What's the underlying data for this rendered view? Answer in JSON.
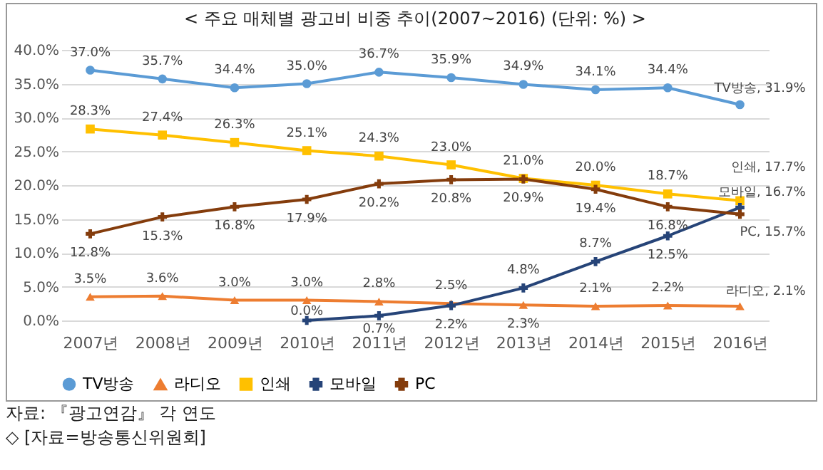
{
  "chart_data": {
    "type": "line",
    "title": "< 주요 매체별 광고비 비중 추이(2007~2016) (단위: %) >",
    "categories": [
      "2007년",
      "2008년",
      "2009년",
      "2010년",
      "2011년",
      "2012년",
      "2013년",
      "2014년",
      "2015년",
      "2016년"
    ],
    "series": [
      {
        "name": "TV방송",
        "color": "#5b9bd5",
        "marker": "circle",
        "values": [
          37.0,
          35.7,
          34.4,
          35.0,
          36.7,
          35.9,
          34.9,
          34.1,
          34.4,
          31.9
        ],
        "value_labels": [
          "37.0%",
          "35.7%",
          "34.4%",
          "35.0%",
          "36.7%",
          "35.9%",
          "34.9%",
          "34.1%",
          "34.4%",
          "TV방송, 31.9%"
        ]
      },
      {
        "name": "라디오",
        "color": "#ed7d31",
        "marker": "triangle",
        "values": [
          3.5,
          3.6,
          3.0,
          3.0,
          2.8,
          2.5,
          2.3,
          2.1,
          2.2,
          2.1
        ],
        "value_labels": [
          "3.5%",
          "3.6%",
          "3.0%",
          "3.0%",
          "2.8%",
          "2.5%",
          "2.3%",
          "2.1%",
          "2.2%",
          "라디오, 2.1%"
        ]
      },
      {
        "name": "인쇄",
        "color": "#ffc000",
        "marker": "square",
        "values": [
          28.3,
          27.4,
          26.3,
          25.1,
          24.3,
          23.0,
          21.0,
          20.0,
          18.7,
          17.7
        ],
        "value_labels": [
          "28.3%",
          "27.4%",
          "26.3%",
          "25.1%",
          "24.3%",
          "23.0%",
          "21.0%",
          "20.0%",
          "18.7%",
          "인쇄, 17.7%"
        ]
      },
      {
        "name": "모바일",
        "color": "#264478",
        "marker": "cross",
        "values": [
          null,
          null,
          null,
          0.0,
          0.7,
          2.2,
          4.8,
          8.7,
          12.5,
          16.7
        ],
        "value_labels": [
          null,
          null,
          null,
          "0.0%",
          "0.7%",
          "2.2%",
          "4.8%",
          "8.7%",
          "12.5%",
          "모바일, 16.7%"
        ]
      },
      {
        "name": "PC",
        "color": "#843c0c",
        "marker": "cross",
        "values": [
          12.8,
          15.3,
          16.8,
          17.9,
          20.2,
          20.8,
          20.9,
          19.4,
          16.8,
          15.7
        ],
        "value_labels": [
          "12.8%",
          "15.3%",
          "16.8%",
          "17.9%",
          "20.2%",
          "20.8%",
          "20.9%",
          "19.4%",
          "16.8%",
          "PC, 15.7%"
        ]
      }
    ],
    "ylim": [
      0,
      40
    ],
    "yticks": [
      {
        "value": 0,
        "label": "0.0%"
      },
      {
        "value": 5,
        "label": "5.0%"
      },
      {
        "value": 10,
        "label": "10.0%"
      },
      {
        "value": 15,
        "label": "15.0%"
      },
      {
        "value": 20,
        "label": "20.0%"
      },
      {
        "value": 25,
        "label": "25.0%"
      },
      {
        "value": 30,
        "label": "30.0%"
      },
      {
        "value": 35,
        "label": "35.0%"
      },
      {
        "value": 40,
        "label": "40.0%"
      }
    ],
    "grid": "y",
    "legend": "bottom",
    "line_style": "solid",
    "annotations": [
      "자료: 『광고연감』 각 연도",
      "◇ [자료=방송통신위원회]"
    ]
  }
}
